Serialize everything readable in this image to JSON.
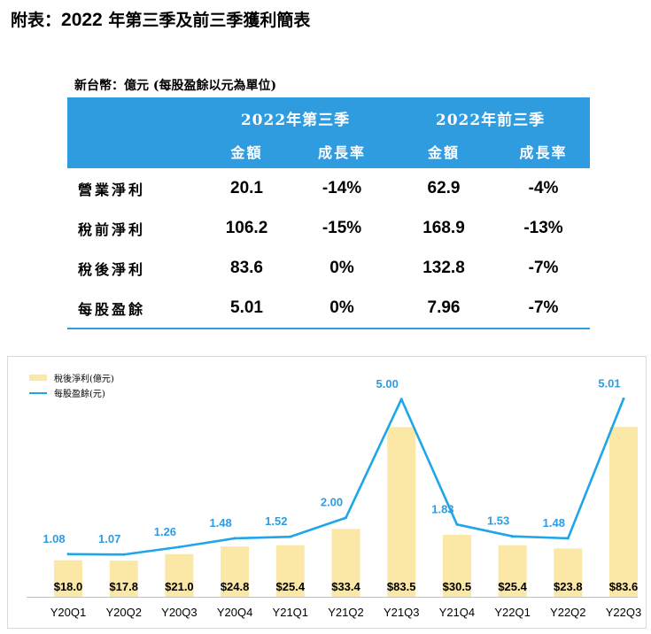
{
  "page": {
    "title_prefix": "附表：",
    "title_year": "2022",
    "title_rest": " 年第三季及前三季獲利簡表",
    "unit_note": "新台幣：億元 (每股盈餘以元為單位)"
  },
  "table": {
    "group_headers": [
      "2022年第三季",
      "2022年前三季"
    ],
    "sub_headers": [
      "金額",
      "成長率",
      "金額",
      "成長率"
    ],
    "rows": [
      {
        "label": "營業淨利",
        "q3_amount": "20.1",
        "q3_growth": "-14%",
        "ytd_amount": "62.9",
        "ytd_growth": "-4%"
      },
      {
        "label": "稅前淨利",
        "q3_amount": "106.2",
        "q3_growth": "-15%",
        "ytd_amount": "168.9",
        "ytd_growth": "-13%"
      },
      {
        "label": "稅後淨利",
        "q3_amount": "83.6",
        "q3_growth": "0%",
        "ytd_amount": "132.8",
        "ytd_growth": "-7%"
      },
      {
        "label": "每股盈餘",
        "q3_amount": "5.01",
        "q3_growth": "0%",
        "ytd_amount": "7.96",
        "ytd_growth": "-7%"
      }
    ]
  },
  "colors": {
    "header_bg": "#2f9ce0",
    "bar": "#fbe7a6",
    "line": "#1ea6e8",
    "eps_label": "#2f9ce0"
  },
  "chart_data": {
    "type": "bar",
    "categories": [
      "Y20Q1",
      "Y20Q2",
      "Y20Q3",
      "Y20Q4",
      "Y21Q1",
      "Y21Q2",
      "Y21Q3",
      "Y21Q4",
      "Y22Q1",
      "Y22Q2",
      "Y22Q3"
    ],
    "series": [
      {
        "name": "稅後淨利(億元)",
        "type": "bar",
        "values": [
          18.0,
          17.8,
          21.0,
          24.8,
          25.4,
          33.4,
          83.5,
          30.5,
          25.4,
          23.8,
          83.6
        ],
        "labels": [
          "$18.0",
          "$17.8",
          "$21.0",
          "$24.8",
          "$25.4",
          "$33.4",
          "$83.5",
          "$30.5",
          "$25.4",
          "$23.8",
          "$83.6"
        ]
      },
      {
        "name": "每股盈餘(元)",
        "type": "line",
        "values": [
          1.08,
          1.07,
          1.26,
          1.48,
          1.52,
          2.0,
          5.0,
          1.83,
          1.53,
          1.48,
          5.01
        ],
        "labels": [
          "1.08",
          "1.07",
          "1.26",
          "1.48",
          "1.52",
          "2.00",
          "5.00",
          "1.83",
          "1.53",
          "1.48",
          "5.01"
        ]
      }
    ],
    "bar_ylim": [
      0,
      95
    ],
    "line_ylim": [
      0,
      5.6
    ],
    "legend": "top-left",
    "grid": false
  }
}
